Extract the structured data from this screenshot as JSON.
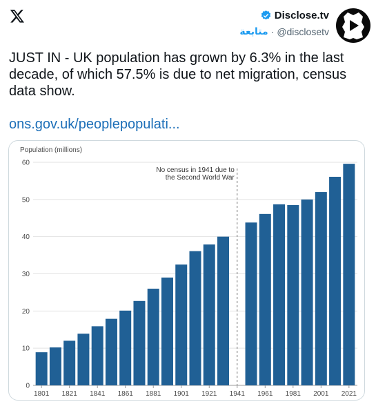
{
  "header": {
    "logo_icon": "x-logo-icon",
    "author_name": "Disclose.tv",
    "verified_icon": "verified-badge-icon",
    "handle": "@disclosetv",
    "separator": "·",
    "follow_label": "متابعة",
    "accent_color": "#1d9bf0"
  },
  "tweet": {
    "text": "JUST IN - UK population has grown by 6.3% in the last decade, of which 57.5% is due to net migration, census data show.",
    "link": "ons.gov.uk/peoplepopulati..."
  },
  "chart_data": {
    "type": "bar",
    "ylabel": "Population (millions)",
    "ylim": [
      0,
      60
    ],
    "yticks": [
      0,
      10,
      20,
      30,
      40,
      50,
      60
    ],
    "xticks": [
      "1801",
      "1821",
      "1841",
      "1861",
      "1881",
      "1901",
      "1921",
      "1941",
      "1961",
      "1981",
      "2001",
      "2021"
    ],
    "categories": [
      "1801",
      "1811",
      "1821",
      "1831",
      "1841",
      "1851",
      "1861",
      "1871",
      "1881",
      "1891",
      "1901",
      "1911",
      "1921",
      "1931",
      "1951",
      "1961",
      "1971",
      "1981",
      "1991",
      "2001",
      "2011",
      "2021"
    ],
    "values": [
      8.9,
      10.2,
      12.0,
      13.9,
      15.9,
      17.9,
      20.1,
      22.7,
      26.0,
      29.0,
      32.5,
      36.1,
      37.9,
      40.0,
      43.8,
      46.1,
      48.7,
      48.5,
      50.0,
      52.0,
      56.1,
      59.6
    ],
    "bar_color": "#206095",
    "gap_year": "1941",
    "annotation": [
      "No census in 1941 due to",
      "the Second World War"
    ]
  }
}
